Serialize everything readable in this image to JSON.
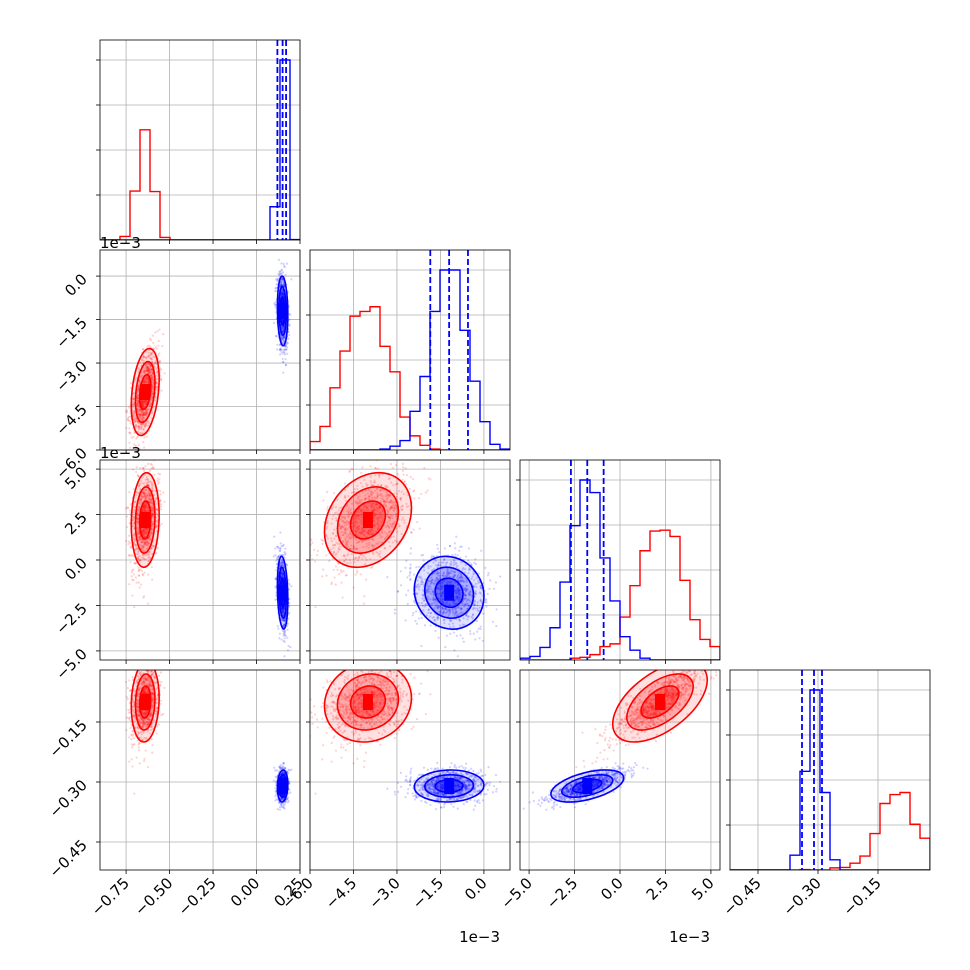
{
  "chart_data": {
    "type": "corner",
    "grid": true,
    "colors": {
      "a": "#ff0000",
      "b": "#0000ff"
    },
    "params": [
      {
        "lim": [
          -0.9,
          0.25
        ],
        "ticks": [
          -0.75,
          -0.5,
          -0.25,
          0.0,
          0.25
        ],
        "tick_labels": [
          "−0.75",
          "−0.50",
          "−0.25",
          "0.00",
          "0.25"
        ],
        "offset": ""
      },
      {
        "lim": [
          -6.0,
          0.9
        ],
        "ticks": [
          -6.0,
          -4.5,
          -3.0,
          -1.5,
          0.0
        ],
        "tick_labels": [
          "−6.0",
          "−4.5",
          "−3.0",
          "−1.5",
          "0.0"
        ],
        "offset": "1e−3"
      },
      {
        "lim": [
          -5.5,
          5.5
        ],
        "ticks": [
          -5.0,
          -2.5,
          0.0,
          2.5,
          5.0
        ],
        "tick_labels": [
          "−5.0",
          "−2.5",
          "0.0",
          "2.5",
          "5.0"
        ],
        "offset": "1e−3"
      },
      {
        "lim": [
          -0.52,
          -0.02
        ],
        "ticks": [
          -0.45,
          -0.3,
          -0.15
        ],
        "tick_labels": [
          "−0.45",
          "−0.30",
          "−0.15"
        ],
        "offset": ""
      }
    ],
    "series": [
      {
        "key": "a",
        "mean": [
          -0.64,
          -4.0,
          2.2,
          -0.1
        ],
        "std": [
          0.04,
          0.75,
          1.3,
          0.05
        ],
        "corr": [
          [
            1,
            0.3,
            0.1,
            0.1
          ],
          [
            0.3,
            1,
            0.25,
            0.1
          ],
          [
            0.1,
            0.25,
            1,
            0.55
          ],
          [
            0.1,
            0.1,
            0.55,
            1
          ]
        ]
      },
      {
        "key": "b",
        "mean": [
          0.15,
          -1.2,
          -1.8,
          -0.31
        ],
        "std": [
          0.015,
          0.6,
          1.0,
          0.02
        ],
        "corr": [
          [
            1,
            -0.1,
            -0.2,
            0.1
          ],
          [
            -0.1,
            1,
            -0.1,
            0.05
          ],
          [
            -0.2,
            -0.1,
            1,
            0.5
          ],
          [
            0.1,
            0.05,
            0.5,
            1
          ]
        ]
      }
    ],
    "quantile_lines": [
      [
        0.12,
        0.15,
        0.17
      ],
      [
        -1.85,
        -1.2,
        -0.55
      ],
      [
        -2.7,
        -1.8,
        -0.9
      ],
      [
        -0.34,
        -0.31,
        -0.29
      ]
    ]
  }
}
